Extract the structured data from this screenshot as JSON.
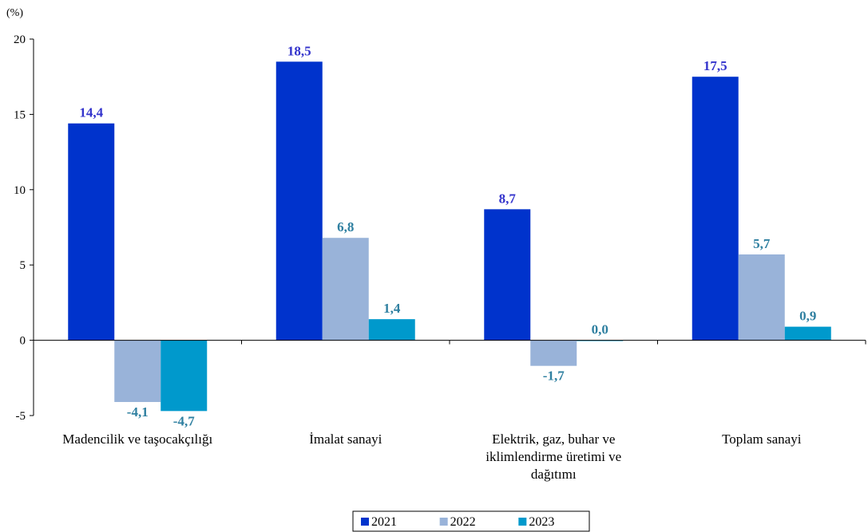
{
  "chart_data": {
    "type": "bar",
    "unit_label": "(%)",
    "categories": [
      [
        "Madencilik ve taşocakçılığı"
      ],
      [
        "İmalat sanayi"
      ],
      [
        "Elektrik, gaz, buhar ve",
        "iklimlendirme üretimi ve",
        "dağıtımı"
      ],
      [
        "Toplam sanayi"
      ]
    ],
    "series": [
      {
        "name": "2021",
        "values": [
          14.4,
          18.5,
          8.7,
          17.5
        ],
        "labels": [
          "14,4",
          "18,5",
          "8,7",
          "17,5"
        ],
        "color": "#0033CC",
        "label_color": "#3333CC"
      },
      {
        "name": "2022",
        "values": [
          -4.1,
          6.8,
          -1.7,
          5.7
        ],
        "labels": [
          "-4,1",
          "6,8",
          "-1,7",
          "5,7"
        ],
        "color": "#99B3D9",
        "label_color": "#2E7FA0"
      },
      {
        "name": "2023",
        "values": [
          -4.7,
          1.4,
          0.0,
          0.9
        ],
        "labels": [
          "-4,7",
          "1,4",
          "0,0",
          "0,9"
        ],
        "color": "#0099CC",
        "label_color": "#2E7FA0"
      }
    ],
    "ylim": [
      -5,
      20
    ],
    "yticks": [
      -5,
      0,
      5,
      10,
      15,
      20
    ],
    "grid": false,
    "legend_position": "bottom-center"
  }
}
